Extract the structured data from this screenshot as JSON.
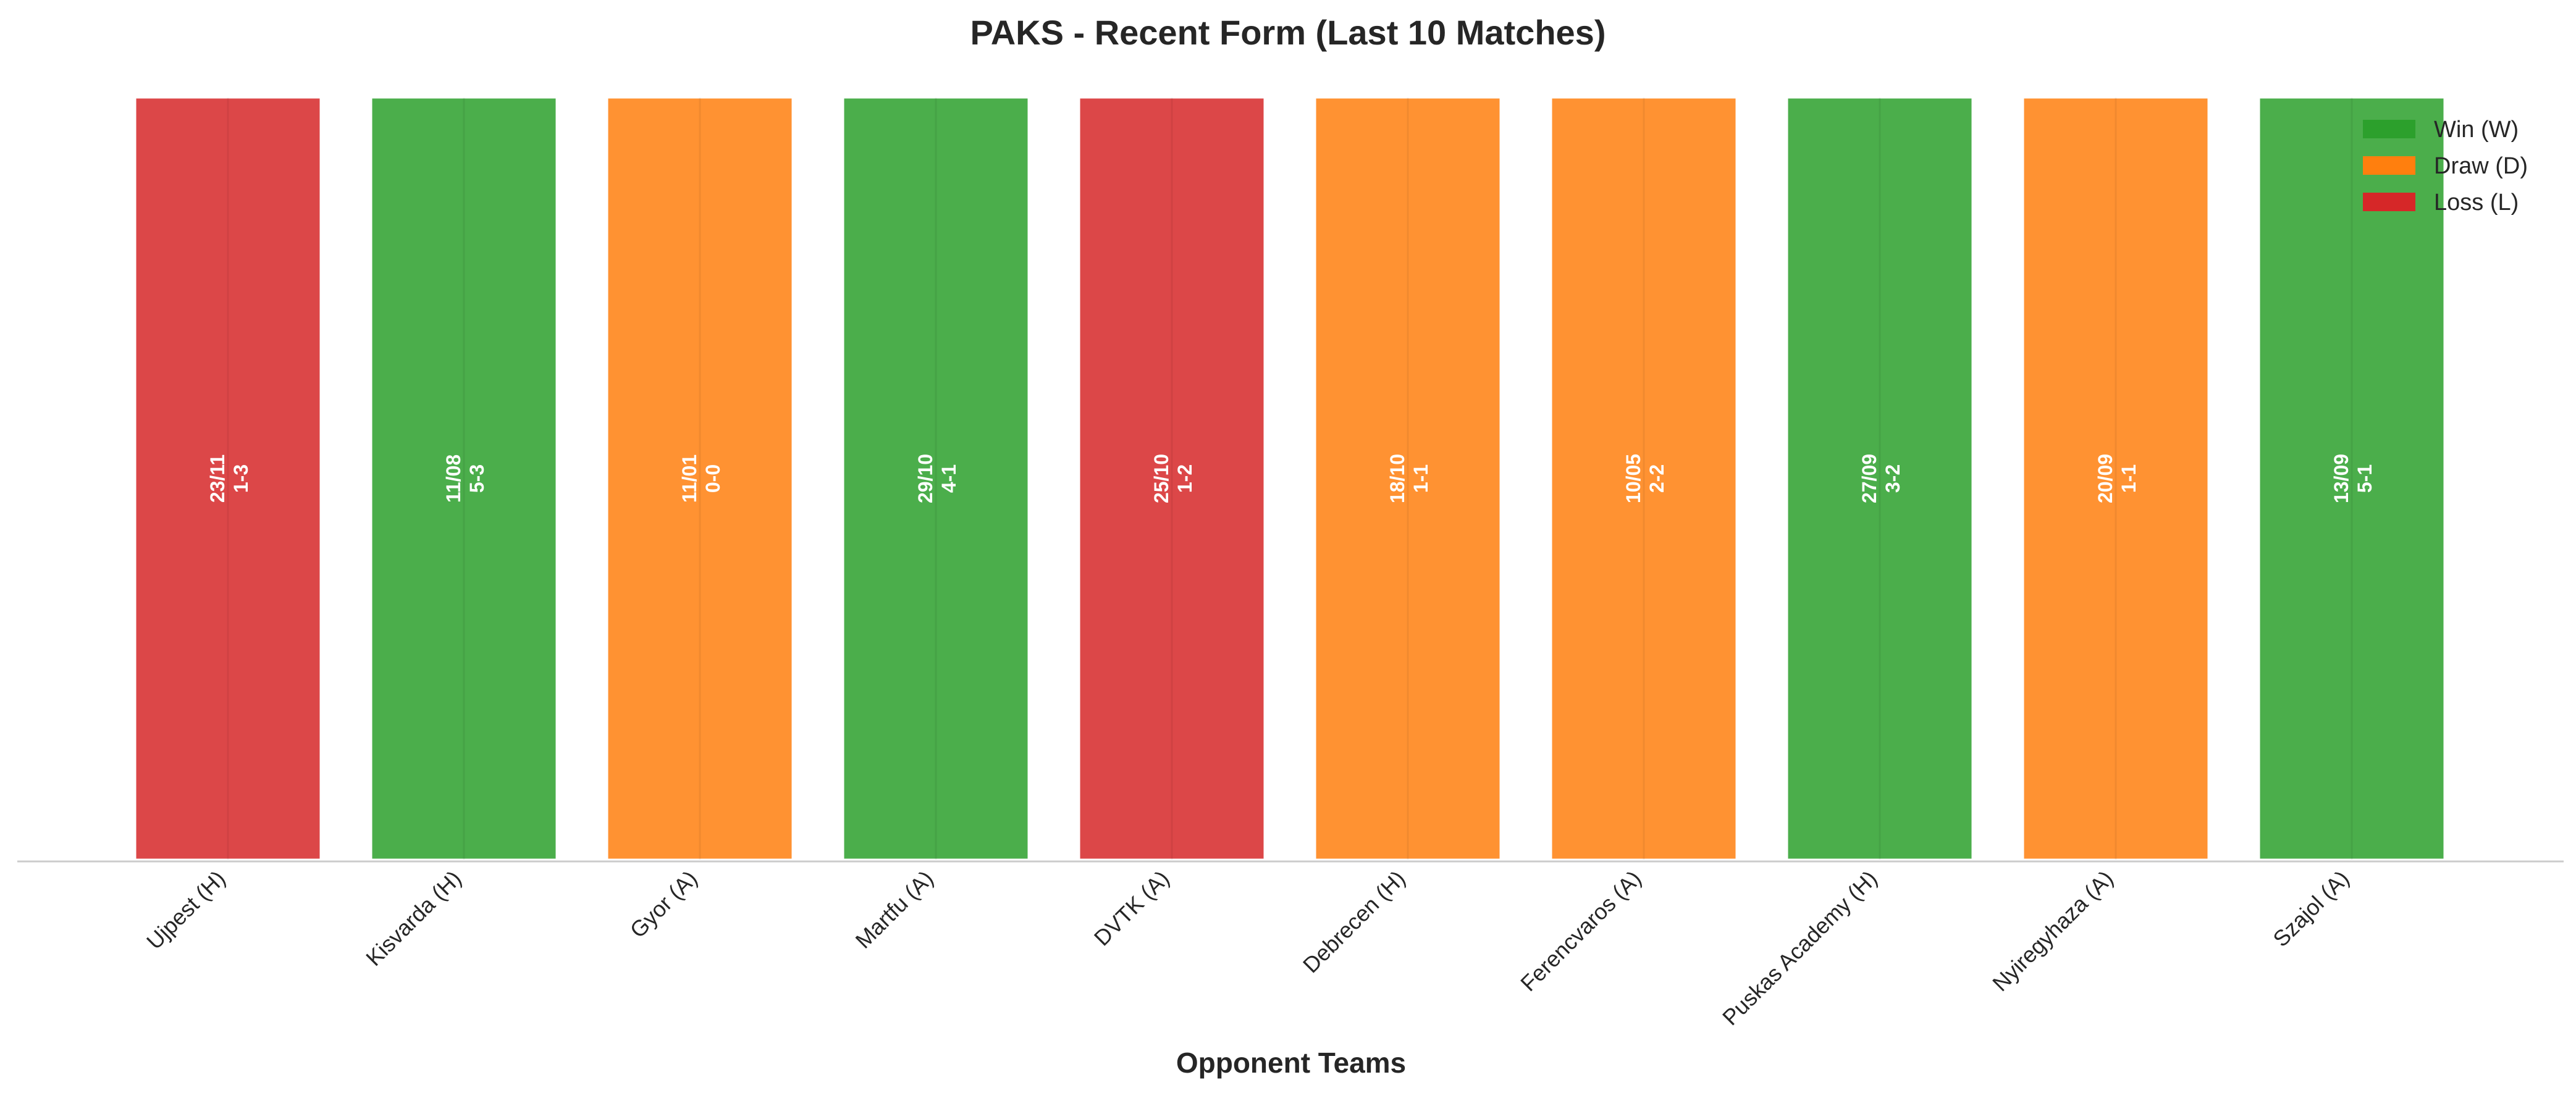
{
  "chart_data": {
    "type": "bar",
    "title": "PAKS - Recent Form (Last 10 Matches)",
    "xlabel": "Opponent Teams",
    "ylabel": "",
    "ylim": [
      0,
      1
    ],
    "grid": false,
    "legend_position": "top-right",
    "legend": [
      {
        "key": "W",
        "label": "Win (W)",
        "color": "#2ca02c"
      },
      {
        "key": "D",
        "label": "Draw (D)",
        "color": "#ff7f0e"
      },
      {
        "key": "L",
        "label": "Loss (L)",
        "color": "#d62728"
      }
    ],
    "categories": [
      "Ujpest (H)",
      "Kisvarda (H)",
      "Gyor (A)",
      "Martfu (A)",
      "DVTK (A)",
      "Debrecen (H)",
      "Ferencvaros (A)",
      "Puskas Academy (H)",
      "Nyiregyhaza (A)",
      "Szajol (A)"
    ],
    "values": [
      1,
      1,
      1,
      1,
      1,
      1,
      1,
      1,
      1,
      1
    ],
    "results": [
      "L",
      "W",
      "D",
      "W",
      "L",
      "D",
      "D",
      "W",
      "D",
      "W"
    ],
    "dates": [
      "23/11",
      "11/08",
      "11/01",
      "29/10",
      "25/10",
      "18/10",
      "10/05",
      "27/09",
      "20/09",
      "13/09"
    ],
    "scores": [
      "1-3",
      "5-3",
      "0-0",
      "4-1",
      "1-2",
      "1-1",
      "2-2",
      "3-2",
      "1-1",
      "5-1"
    ]
  }
}
